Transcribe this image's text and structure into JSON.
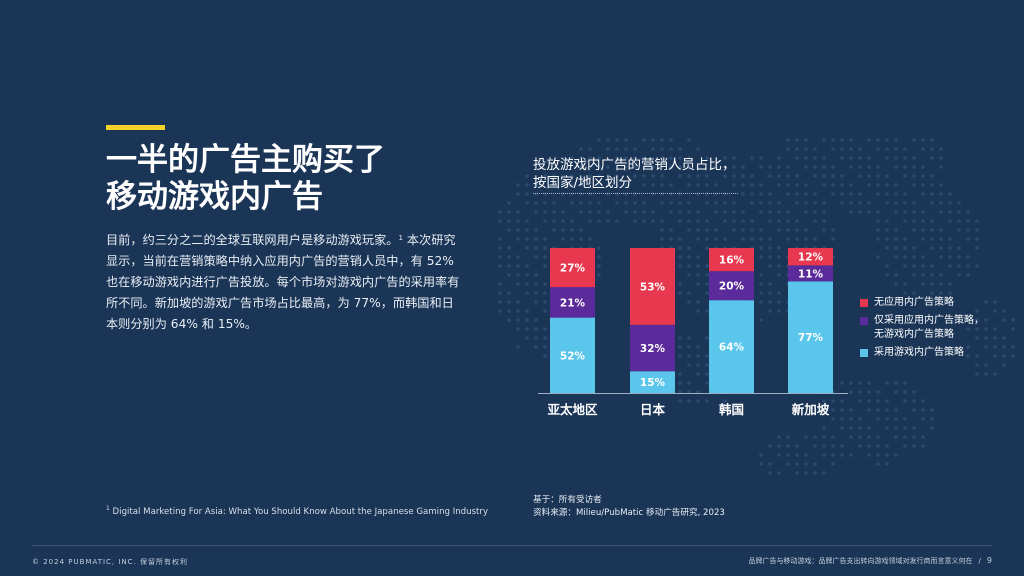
{
  "headline": {
    "line1": "一半的广告主购买了",
    "line2": "移动游戏内广告"
  },
  "body": {
    "text_before_ref": "目前，约三分之二的全球互联网用户是移动游戏玩家。",
    "ref": "1",
    "text_after_ref": " 本次研究显示，当前在营销策略中纳入应用内广告的营销人员中，有 52% 也在移动游戏内进行广告投放。每个市场对游戏内广告的采用率有所不同。新加坡的游戏广告市场占比最高，为 77%，而韩国和日本则分别为 64% 和 15%。"
  },
  "footnote": {
    "ref": "1",
    "text": " Digital Marketing For Asia: What You Should Know About the Japanese Gaming Industry"
  },
  "chart_title": {
    "line1": "投放游戏内广告的营销人员占比，",
    "line2": "按国家/地区划分"
  },
  "legend": [
    {
      "label_lines": [
        "无应用内广告策略"
      ],
      "color": "#e8384f"
    },
    {
      "label_lines": [
        "仅采用应用内广告策略，",
        "无游戏内广告策略"
      ],
      "color": "#5b2a9b"
    },
    {
      "label_lines": [
        "采用游戏内广告策略"
      ],
      "color": "#5ac6eb"
    }
  ],
  "chart_data": {
    "type": "bar",
    "stacked": true,
    "categories": [
      "亚太地区",
      "日本",
      "韩国",
      "新加坡"
    ],
    "series": [
      {
        "name": "采用游戏内广告策略",
        "values": [
          52,
          15,
          64,
          77
        ],
        "color": "#5ac6eb"
      },
      {
        "name": "仅采用应用内广告策略，无游戏内广告策略",
        "values": [
          21,
          32,
          20,
          11
        ],
        "color": "#5b2a9b"
      },
      {
        "name": "无应用内广告策略",
        "values": [
          27,
          53,
          16,
          12
        ],
        "color": "#e8384f"
      }
    ],
    "value_suffix": "%",
    "ylim": [
      0,
      100
    ],
    "grid": false,
    "legend_position": "right"
  },
  "source": {
    "line1": "基于：所有受访者",
    "line2": "资料来源：Milieu/PubMatic 移动广告研究, 2023"
  },
  "footer": {
    "copyright": "© 2024 PUBMATIC, INC. 保留所有权利",
    "doc_title": "品牌广告与移动游戏：品牌广告支出转向游戏领域对发行商而言意义何在",
    "separator": "/",
    "page": "9"
  },
  "colors": {
    "background": "#1b3557",
    "accent": "#f5d228"
  }
}
